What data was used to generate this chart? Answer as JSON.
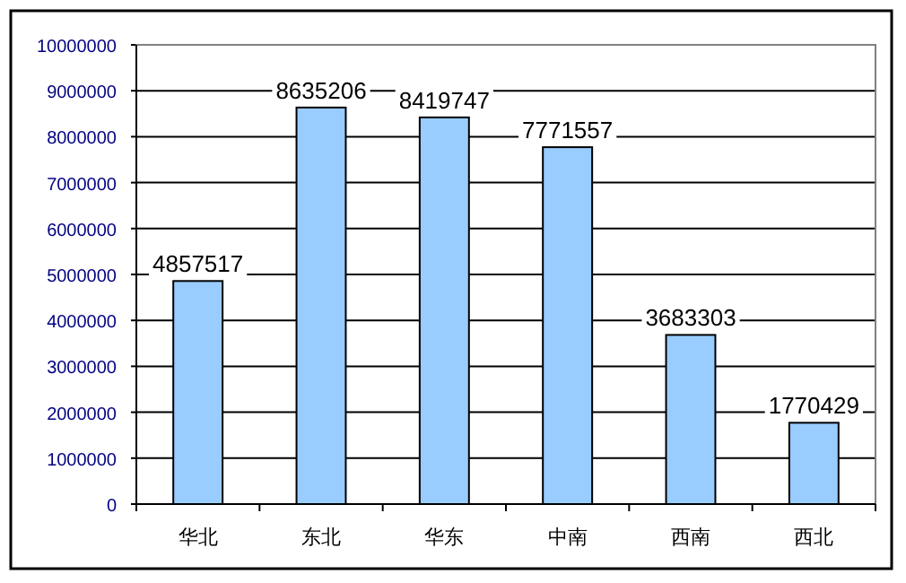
{
  "chart_data": {
    "type": "bar",
    "categories": [
      "华北",
      "东北",
      "华东",
      "中南",
      "西南",
      "西北"
    ],
    "values": [
      4857517,
      8635206,
      8419747,
      7771557,
      3683303,
      1770429
    ],
    "color": "#99ccff",
    "ylim": [
      0,
      10000000
    ],
    "yticks": [
      0,
      1000000,
      2000000,
      3000000,
      4000000,
      5000000,
      6000000,
      7000000,
      8000000,
      9000000,
      10000000
    ],
    "grid": "y",
    "data_labels": true
  }
}
